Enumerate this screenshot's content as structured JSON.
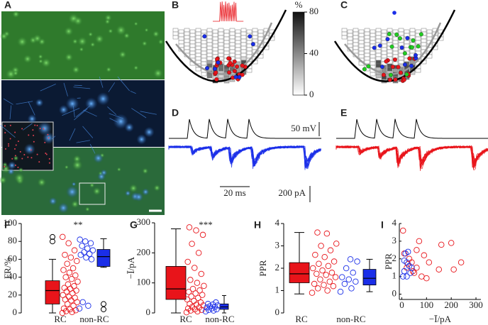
{
  "panel_labels": [
    "A",
    "B",
    "C",
    "D",
    "E",
    "F",
    "G",
    "H",
    "I"
  ],
  "colorbar": {
    "label": "%",
    "lim": [
      0,
      80
    ],
    "ticks": [
      0,
      40,
      80
    ]
  },
  "scale_bars": {
    "voltage": "50 mV",
    "time": "20 ms",
    "current": "200 pA"
  },
  "chart_data": [
    {
      "type": "box-strip",
      "ylabel": "FR/%",
      "annotation": "**",
      "ylim": [
        0,
        100
      ],
      "yticks": [
        0,
        20,
        40,
        60,
        80,
        100
      ],
      "categories": [
        "RC",
        "non-RC"
      ],
      "colors": [
        "#e8141a",
        "#1a2ee8"
      ],
      "boxes": [
        {
          "min": 0,
          "q1": 10,
          "median": 25,
          "q3": 36,
          "max": 60,
          "outliers": [
            80,
            85
          ]
        },
        {
          "min": 51,
          "q1": 52,
          "median": 63,
          "q3": 71,
          "max": 83,
          "outliers": [
            10,
            4
          ]
        }
      ],
      "points": [
        [
          0,
          1,
          2,
          3,
          4,
          5,
          8,
          10,
          12,
          14,
          15,
          17,
          18,
          20,
          22,
          24,
          25,
          27,
          28,
          30,
          32,
          35,
          38,
          40,
          42,
          45,
          48,
          50,
          55,
          58,
          62,
          65,
          70,
          78,
          85
        ],
        [
          5,
          8,
          12,
          60,
          62,
          65,
          66,
          68,
          70,
          72,
          75,
          78,
          80,
          82
        ]
      ]
    },
    {
      "type": "box-strip",
      "ylabel": "−Ī/pA",
      "annotation": "***",
      "ylim": [
        0,
        300
      ],
      "yticks": [
        0,
        100,
        200,
        300
      ],
      "categories": [
        "RC",
        "non-RC"
      ],
      "colors": [
        "#e8141a",
        "#1a2ee8"
      ],
      "boxes": [
        {
          "min": 0,
          "q1": 45,
          "median": 80,
          "q3": 155,
          "max": 280,
          "outliers": []
        },
        {
          "min": 0,
          "q1": 12,
          "median": 20,
          "q3": 30,
          "max": 58,
          "outliers": []
        }
      ],
      "points": [
        [
          2,
          5,
          8,
          10,
          12,
          15,
          18,
          20,
          25,
          28,
          30,
          35,
          40,
          45,
          50,
          55,
          60,
          65,
          70,
          75,
          80,
          90,
          100,
          110,
          130,
          150,
          170,
          200,
          230,
          260,
          275,
          285
        ],
        [
          5,
          8,
          10,
          12,
          15,
          18,
          20,
          22,
          25,
          28,
          30,
          35
        ]
      ]
    },
    {
      "type": "box-strip",
      "ylabel": "PPR",
      "ylim": [
        0,
        4
      ],
      "yticks": [
        0,
        1,
        2,
        3,
        4
      ],
      "categories": [
        "RC",
        "non-RC"
      ],
      "colors": [
        "#e8141a",
        "#1a2ee8"
      ],
      "boxes": [
        {
          "min": 0.85,
          "q1": 1.35,
          "median": 1.75,
          "q3": 2.25,
          "max": 3.6,
          "outliers": []
        },
        {
          "min": 0.95,
          "q1": 1.25,
          "median": 1.55,
          "q3": 1.95,
          "max": 2.4,
          "outliers": []
        }
      ],
      "points": [
        [
          0.9,
          1.0,
          1.1,
          1.2,
          1.25,
          1.3,
          1.4,
          1.5,
          1.6,
          1.7,
          1.75,
          1.8,
          1.9,
          2.0,
          2.1,
          2.2,
          2.3,
          2.5,
          2.6,
          2.8,
          3.0,
          3.1,
          3.55,
          3.6
        ],
        [
          0.95,
          1.1,
          1.3,
          1.4,
          1.5,
          1.6,
          1.8,
          2.0,
          2.3,
          2.4
        ]
      ]
    },
    {
      "type": "scatter",
      "xlabel": "−Ī/pA",
      "ylabel": "PPR",
      "xlim": [
        -10,
        320
      ],
      "ylim": [
        -0.3,
        4
      ],
      "xticks": [
        0,
        100,
        200,
        300
      ],
      "yticks": [
        0,
        1,
        2,
        3,
        4
      ],
      "series": [
        {
          "color": "#e8141a",
          "x": [
            5,
            20,
            30,
            40,
            50,
            60,
            70,
            80,
            90,
            100,
            110,
            150,
            160,
            200,
            210,
            240,
            10,
            25,
            60,
            45
          ],
          "values": [
            3.6,
            1.5,
            2.0,
            1.8,
            1.2,
            1.5,
            3.0,
            1.0,
            2.2,
            0.9,
            1.8,
            1.4,
            2.8,
            2.9,
            1.4,
            1.8,
            2.3,
            1.7,
            2.5,
            1.3
          ]
        },
        {
          "color": "#1a2ee8",
          "x": [
            5,
            10,
            15,
            20,
            25,
            30,
            35,
            20,
            10,
            40
          ],
          "values": [
            1.0,
            1.3,
            2.3,
            1.8,
            2.4,
            1.6,
            1.2,
            1.0,
            1.9,
            1.5
          ]
        }
      ]
    }
  ]
}
